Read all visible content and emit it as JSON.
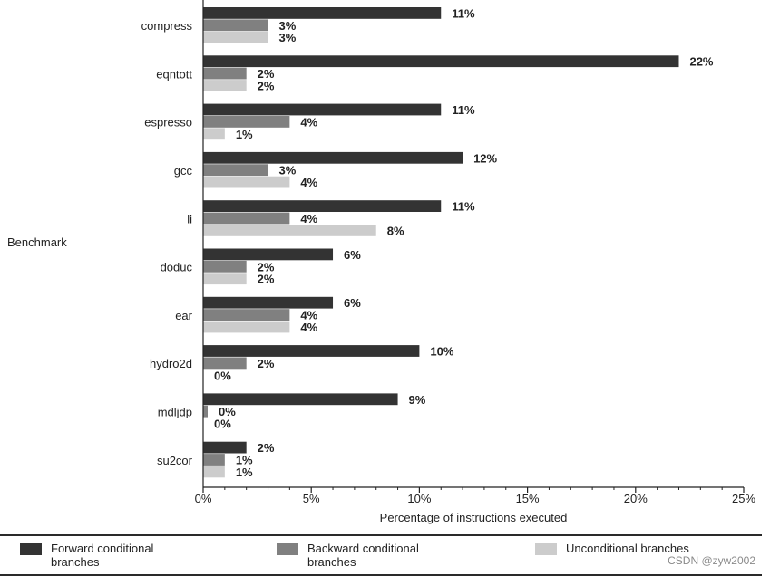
{
  "chart_data": {
    "type": "bar",
    "orientation": "horizontal",
    "ylabel": "Benchmark",
    "xlabel": "Percentage of instructions executed",
    "xlim": [
      0,
      25
    ],
    "xticks": [
      0,
      5,
      10,
      15,
      20,
      25
    ],
    "xtick_labels": [
      "0%",
      "5%",
      "10%",
      "15%",
      "20%",
      "25%"
    ],
    "categories": [
      "compress",
      "eqntott",
      "espresso",
      "gcc",
      "li",
      "doduc",
      "ear",
      "hydro2d",
      "mdljdp",
      "su2cor"
    ],
    "series": [
      {
        "name": "Forward conditional branches",
        "color": "#333333",
        "values": [
          11,
          22,
          11,
          12,
          11,
          6,
          6,
          10,
          9,
          2
        ]
      },
      {
        "name": "Backward conditional branches",
        "color": "#808080",
        "values": [
          3,
          2,
          4,
          3,
          4,
          2,
          4,
          2,
          0,
          1
        ]
      },
      {
        "name": "Unconditional branches",
        "color": "#cccccc",
        "values": [
          3,
          2,
          1,
          4,
          8,
          2,
          4,
          0,
          0,
          1
        ]
      }
    ],
    "value_label_suffix": "%",
    "legend_position": "bottom"
  },
  "legend": {
    "items": [
      {
        "line1": "Forward conditional",
        "line2": "branches",
        "color": "#333333"
      },
      {
        "line1": "Backward conditional",
        "line2": "branches",
        "color": "#808080"
      },
      {
        "line1": "Unconditional branches",
        "line2": "",
        "color": "#cccccc"
      }
    ]
  },
  "watermark": "CSDN @zyw2002"
}
